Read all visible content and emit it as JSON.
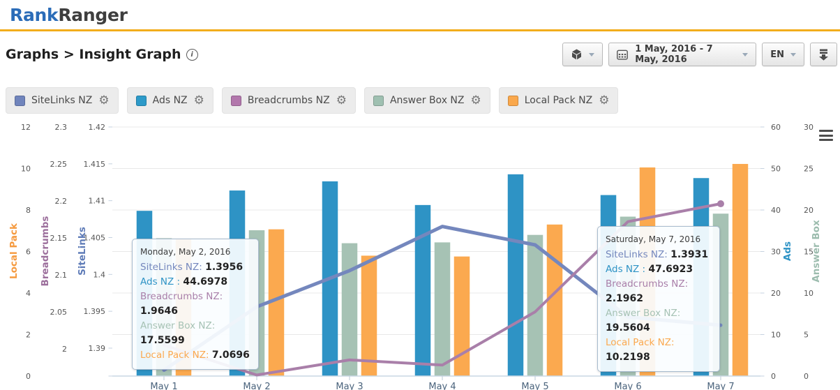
{
  "header": {
    "logo_rank": "Rank",
    "logo_ranger": "Ranger"
  },
  "breadcrumb": {
    "text": "Graphs > Insight Graph"
  },
  "toolbar": {
    "date_range": "1 May, 2016 - 7 May, 2016",
    "language": "EN"
  },
  "icons": {
    "gear": "⚙"
  },
  "legend_chips": [
    {
      "label": "SiteLinks NZ",
      "color": "#7084BC"
    },
    {
      "label": "Ads NZ",
      "color": "#2D9AC9"
    },
    {
      "label": "Breadcrumbs NZ",
      "color": "#B277AC"
    },
    {
      "label": "Answer Box NZ",
      "color": "#9FC0B1"
    },
    {
      "label": "Local Pack NZ",
      "color": "#FAA84C"
    }
  ],
  "chart_data": {
    "type": "combo (column + line)",
    "categories": [
      "May 1",
      "May 2",
      "May 3",
      "May 4",
      "May 5",
      "May 6",
      "May 7"
    ],
    "series": [
      {
        "name": "SiteLinks NZ",
        "type": "line",
        "axis": "SiteLinks",
        "color": "#7487BD",
        "values": [
          1.387,
          1.3956,
          1.4005,
          1.4065,
          1.404,
          1.3942,
          1.3931
        ]
      },
      {
        "name": "Ads NZ",
        "type": "column",
        "axis": "Ads",
        "color": "#2E93C5",
        "values": [
          39.8,
          44.6978,
          46.9,
          41.2,
          48.6,
          43.6,
          47.6923
        ]
      },
      {
        "name": "Breadcrumbs NZ",
        "type": "line",
        "axis": "Breadcrumbs",
        "color": "#A97FA9",
        "end_marker": true,
        "values": [
          2.005,
          1.9646,
          1.985,
          1.978,
          2.05,
          2.172,
          2.1962
        ]
      },
      {
        "name": "Answer Box NZ",
        "type": "column",
        "axis": "Answer Box",
        "color": "#A6C2B4",
        "values": [
          16.6,
          17.5599,
          16.0,
          16.1,
          17.0,
          19.2,
          19.5604
        ]
      },
      {
        "name": "Local Pack NZ",
        "type": "column",
        "axis": "Local Pack",
        "color": "#FBA94F",
        "values": [
          6.6,
          7.0696,
          5.8,
          5.76,
          7.3,
          10.05,
          10.2198
        ]
      }
    ],
    "axes": {
      "left": [
        {
          "title": "Local Pack",
          "color": "#F59A3F",
          "min": 0,
          "max": 12,
          "ticks": [
            "12",
            "10",
            "8",
            "6",
            "4",
            "2",
            "0"
          ]
        },
        {
          "title": "Breadcrumbs",
          "color": "#9C6F9C",
          "min": 2.0,
          "max": 2.3,
          "ticks": [
            "2.3",
            "2.25",
            "2.2",
            "2.15",
            "2.1",
            "2.05",
            "2"
          ]
        },
        {
          "title": "SiteLinks",
          "color": "#5F7CB8",
          "min": 1.39,
          "max": 1.42,
          "ticks": [
            "1.42",
            "1.415",
            "1.41",
            "1.405",
            "1.4",
            "1.395",
            "1.39"
          ]
        }
      ],
      "right": [
        {
          "title": "Ads",
          "color": "#2E93C5",
          "min": 0,
          "max": 60,
          "ticks": [
            "60",
            "50",
            "40",
            "30",
            "20",
            "10",
            "0"
          ]
        },
        {
          "title": "Answer Box",
          "color": "#9CBCAE",
          "min": 0,
          "max": 30,
          "ticks": [
            "30",
            "25",
            "20",
            "15",
            "10",
            "5",
            "0"
          ]
        }
      ],
      "tick_color": "#555555",
      "x_label_color": "#4A637C",
      "grid": true
    },
    "tooltips": [
      {
        "date": "Monday, May 2, 2016",
        "rows": [
          {
            "label": "SiteLinks NZ",
            "value": "1.3956"
          },
          {
            "label": "Ads NZ ",
            "value": "44.6978"
          },
          {
            "label": "Breadcrumbs NZ",
            "value": "1.9646"
          },
          {
            "label": "Answer Box NZ",
            "value": "17.5599"
          },
          {
            "label": "Local Pack NZ",
            "value": "7.0696"
          }
        ]
      },
      {
        "date": "Saturday, May 7, 2016",
        "rows": [
          {
            "label": "SiteLinks NZ",
            "value": "1.3931"
          },
          {
            "label": "Ads NZ ",
            "value": "47.6923"
          },
          {
            "label": "Breadcrumbs NZ",
            "value": "2.1962"
          },
          {
            "label": "Answer Box NZ",
            "value": "19.5604"
          },
          {
            "label": "Local Pack NZ",
            "value": "10.2198"
          }
        ]
      }
    ]
  }
}
